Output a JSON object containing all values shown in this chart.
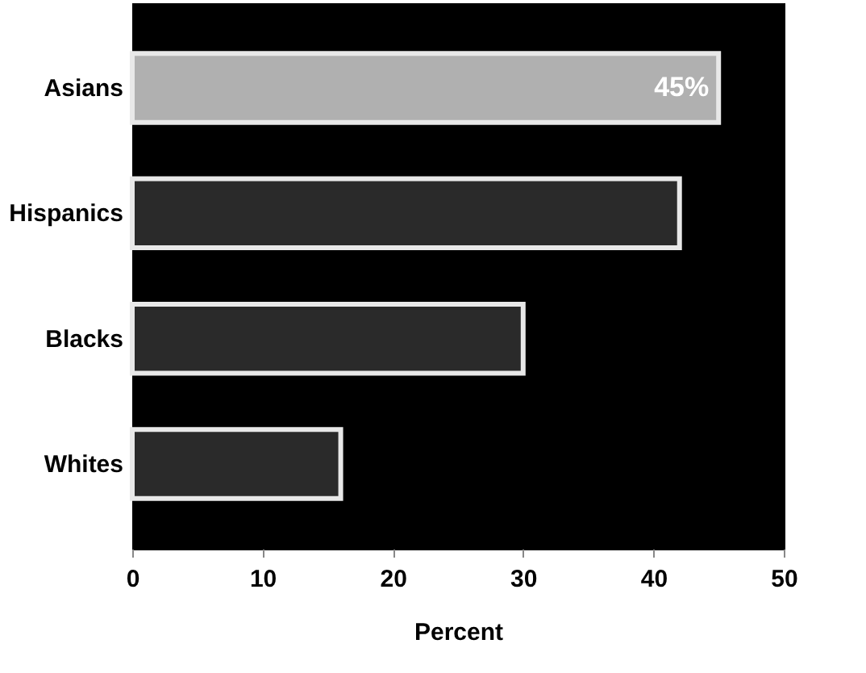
{
  "chart_data": {
    "type": "bar",
    "orientation": "horizontal",
    "xlabel": "Percent",
    "categories": [
      "Asians",
      "Hispanics",
      "Blacks",
      "Whites"
    ],
    "values": [
      45,
      42,
      30,
      16
    ],
    "colors": [
      "#b0b0b0",
      "#2a2a2a",
      "#2a2a2a",
      "#2a2a2a"
    ],
    "value_labels": [
      "45%",
      null,
      null,
      null
    ],
    "xlim": [
      0,
      50
    ],
    "xticks": [
      0,
      10,
      20,
      30,
      40,
      50
    ],
    "grid": false
  }
}
